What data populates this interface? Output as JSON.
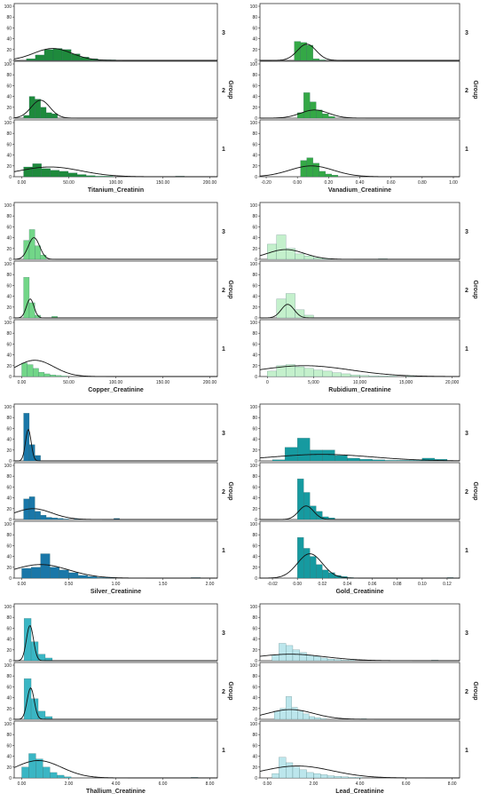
{
  "chart_data": [
    {
      "type": "histogram-panel",
      "xlabel": "Titanium_Creatinin",
      "group_label": "Group",
      "color": "#1e8a3c",
      "xlim": [
        -8,
        208
      ],
      "ylim": [
        0,
        100
      ],
      "xticks": [
        {
          "v": 0,
          "label": "0.00"
        },
        {
          "v": 50,
          "label": "50.00"
        },
        {
          "v": 100,
          "label": "100.00"
        },
        {
          "v": 150,
          "label": "150.00"
        },
        {
          "v": 200,
          "label": "200.00"
        }
      ],
      "yticks": [
        0,
        20,
        40,
        60,
        80,
        100
      ],
      "groups": [
        {
          "label": "3",
          "binStart": 5,
          "binWidth": 9.5,
          "counts": [
            3,
            10,
            20,
            22,
            20,
            12,
            6,
            3,
            1,
            1
          ],
          "curve": {
            "mean": 33,
            "sd": 20,
            "peak": 22
          }
        },
        {
          "label": "2",
          "binStart": 2,
          "binWidth": 6,
          "counts": [
            5,
            40,
            35,
            20,
            10,
            8
          ],
          "curve": {
            "mean": 20,
            "sd": 10,
            "peak": 33
          }
        },
        {
          "label": "1",
          "binStart": 2,
          "binWidth": 9.5,
          "counts": [
            18,
            24,
            15,
            12,
            10,
            7,
            4,
            2,
            1,
            1,
            0,
            0,
            0,
            0,
            0,
            0,
            0,
            1
          ],
          "curve": {
            "mean": 30,
            "sd": 33,
            "peak": 18
          }
        }
      ]
    },
    {
      "type": "histogram-panel",
      "xlabel": "Vanadium_Creatinine",
      "group_label": "Group",
      "color": "#34a846",
      "xlim": [
        -0.24,
        1.04
      ],
      "ylim": [
        0,
        100
      ],
      "xticks": [
        {
          "v": -0.2,
          "label": "-0.20"
        },
        {
          "v": 0,
          "label": "0.00"
        },
        {
          "v": 0.2,
          "label": "0.20"
        },
        {
          "v": 0.4,
          "label": "0.40"
        },
        {
          "v": 0.6,
          "label": "0.60"
        },
        {
          "v": 0.8,
          "label": "0.80"
        },
        {
          "v": 1.0,
          "label": "1.00"
        }
      ],
      "yticks": [
        0,
        20,
        40,
        60,
        80,
        100
      ],
      "groups": [
        {
          "label": "3",
          "binStart": -0.02,
          "binWidth": 0.04,
          "counts": [
            35,
            33,
            28,
            3,
            1
          ],
          "curve": {
            "mean": 0.06,
            "sd": 0.06,
            "peak": 30
          }
        },
        {
          "label": "2",
          "binStart": 0.0,
          "binWidth": 0.04,
          "counts": [
            10,
            47,
            30,
            15,
            8,
            3
          ],
          "curve": {
            "mean": 0.11,
            "sd": 0.09,
            "peak": 15
          }
        },
        {
          "label": "1",
          "binStart": 0.02,
          "binWidth": 0.04,
          "counts": [
            30,
            35,
            25,
            10,
            5,
            3
          ],
          "curve": {
            "mean": 0.09,
            "sd": 0.14,
            "peak": 20
          }
        }
      ]
    },
    {
      "type": "histogram-panel",
      "xlabel": "Copper_Creatinine",
      "group_label": "Group",
      "color": "#72d688",
      "xlim": [
        -8,
        208
      ],
      "ylim": [
        0,
        100
      ],
      "xticks": [
        {
          "v": 0,
          "label": "0.00"
        },
        {
          "v": 50,
          "label": "50.00"
        },
        {
          "v": 100,
          "label": "100.00"
        },
        {
          "v": 150,
          "label": "150.00"
        },
        {
          "v": 200,
          "label": "200.00"
        }
      ],
      "yticks": [
        0,
        20,
        40,
        60,
        80,
        100
      ],
      "groups": [
        {
          "label": "3",
          "binStart": 2,
          "binWidth": 6,
          "counts": [
            35,
            55,
            25,
            8
          ],
          "curve": {
            "mean": 13,
            "sd": 6,
            "peak": 40
          }
        },
        {
          "label": "2",
          "binStart": 2,
          "binWidth": 6,
          "counts": [
            75,
            28,
            5,
            0,
            0,
            3
          ],
          "curve": {
            "mean": 9,
            "sd": 4,
            "peak": 35
          }
        },
        {
          "label": "1",
          "binStart": 0,
          "binWidth": 6,
          "counts": [
            25,
            22,
            15,
            8,
            5,
            3,
            2,
            1
          ],
          "curve": {
            "mean": 14,
            "sd": 20,
            "peak": 30
          }
        }
      ]
    },
    {
      "type": "histogram-panel",
      "xlabel": "Rubidium_Creatinine",
      "group_label": "Group",
      "color": "#c4f0cc",
      "xlim": [
        -800,
        20800
      ],
      "ylim": [
        0,
        100
      ],
      "xticks": [
        {
          "v": 0,
          "label": "0"
        },
        {
          "v": 5000,
          "label": "5,000"
        },
        {
          "v": 10000,
          "label": "10,000"
        },
        {
          "v": 15000,
          "label": "15,000"
        },
        {
          "v": 20000,
          "label": "20,000"
        }
      ],
      "yticks": [
        0,
        20,
        40,
        60,
        80,
        100
      ],
      "groups": [
        {
          "label": "3",
          "binStart": 0,
          "binWidth": 1000,
          "counts": [
            28,
            45,
            20,
            10,
            6,
            3,
            1,
            0,
            0,
            0,
            0,
            0,
            1
          ],
          "curve": {
            "mean": 2000,
            "sd": 2000,
            "peak": 18
          }
        },
        {
          "label": "2",
          "binStart": 1000,
          "binWidth": 1000,
          "counts": [
            35,
            45,
            15,
            5
          ],
          "curve": {
            "mean": 2200,
            "sd": 700,
            "peak": 25
          }
        },
        {
          "label": "1",
          "binStart": 0,
          "binWidth": 1000,
          "counts": [
            10,
            20,
            22,
            18,
            15,
            12,
            10,
            7,
            5,
            3,
            2,
            1,
            1,
            1,
            0,
            1
          ],
          "curve": {
            "mean": 4000,
            "sd": 5000,
            "peak": 20
          }
        }
      ]
    },
    {
      "type": "histogram-panel",
      "xlabel": "Silver_Creatinine",
      "group_label": "Group",
      "color": "#1a77a8",
      "xlim": [
        -0.08,
        2.08
      ],
      "ylim": [
        0,
        100
      ],
      "xticks": [
        {
          "v": 0,
          "label": "0.00"
        },
        {
          "v": 0.5,
          "label": "0.50"
        },
        {
          "v": 1.0,
          "label": "1.00"
        },
        {
          "v": 1.5,
          "label": "1.50"
        },
        {
          "v": 2.0,
          "label": "2.00"
        }
      ],
      "yticks": [
        0,
        20,
        40,
        60,
        80,
        100
      ],
      "groups": [
        {
          "label": "3",
          "binStart": 0.02,
          "binWidth": 0.06,
          "counts": [
            88,
            30,
            10
          ],
          "curve": {
            "mean": 0.07,
            "sd": 0.03,
            "peak": 58
          }
        },
        {
          "label": "2",
          "binStart": 0.02,
          "binWidth": 0.06,
          "counts": [
            38,
            42,
            15,
            8,
            4,
            3,
            2,
            1,
            0,
            1,
            0,
            0,
            0,
            0,
            0,
            0,
            2
          ],
          "curve": {
            "mean": 0.12,
            "sd": 0.2,
            "peak": 20
          }
        },
        {
          "label": "1",
          "binStart": 0,
          "binWidth": 0.1,
          "counts": [
            18,
            20,
            45,
            20,
            15,
            10,
            5,
            3,
            1,
            1,
            0,
            0,
            0,
            0,
            0,
            0,
            0,
            0,
            1
          ],
          "curve": {
            "mean": 0.2,
            "sd": 0.3,
            "peak": 25
          }
        }
      ]
    },
    {
      "type": "histogram-panel",
      "xlabel": "Gold_Creatinine",
      "group_label": "Group",
      "color": "#169aa0",
      "xlim": [
        -0.03,
        0.13
      ],
      "ylim": [
        0,
        100
      ],
      "xticks": [
        {
          "v": -0.02,
          "label": "-0.02"
        },
        {
          "v": 0,
          "label": "0.00"
        },
        {
          "v": 0.02,
          "label": "0.02"
        },
        {
          "v": 0.04,
          "label": "0.04"
        },
        {
          "v": 0.06,
          "label": "0.06"
        },
        {
          "v": 0.08,
          "label": "0.08"
        },
        {
          "v": 0.1,
          "label": "0.10"
        },
        {
          "v": 0.12,
          "label": "0.12"
        }
      ],
      "yticks": [
        0,
        20,
        40,
        60,
        80,
        100
      ],
      "groups": [
        {
          "label": "3",
          "binStart": -0.02,
          "binWidth": 0.01,
          "counts": [
            2,
            25,
            42,
            20,
            20,
            10,
            5,
            3,
            2,
            1,
            1,
            1,
            5,
            3
          ],
          "curve": {
            "mean": 0.02,
            "sd": 0.04,
            "peak": 12
          }
        },
        {
          "label": "2",
          "binStart": 0,
          "binWidth": 0.005,
          "counts": [
            75,
            50,
            25,
            15,
            5,
            3
          ],
          "curve": {
            "mean": 0.007,
            "sd": 0.006,
            "peak": 25
          }
        },
        {
          "label": "1",
          "binStart": 0,
          "binWidth": 0.005,
          "counts": [
            75,
            55,
            40,
            25,
            15,
            10,
            5,
            3,
            1,
            0,
            0,
            0,
            0,
            0,
            0,
            0,
            0,
            0,
            0,
            0,
            0,
            0,
            0,
            0,
            1
          ],
          "curve": {
            "mean": 0.01,
            "sd": 0.01,
            "peak": 45
          }
        }
      ]
    },
    {
      "type": "histogram-panel",
      "xlabel": "Thallium_Creatinine",
      "group_label": "Group",
      "color": "#3ab6c4",
      "xlim": [
        -0.32,
        8.32
      ],
      "ylim": [
        0,
        100
      ],
      "xticks": [
        {
          "v": 0,
          "label": "0.00"
        },
        {
          "v": 2,
          "label": "2.00"
        },
        {
          "v": 4,
          "label": "4.00"
        },
        {
          "v": 6,
          "label": "6.00"
        },
        {
          "v": 8,
          "label": "8.00"
        }
      ],
      "yticks": [
        0,
        20,
        40,
        60,
        80,
        100
      ],
      "groups": [
        {
          "label": "3",
          "binStart": 0.1,
          "binWidth": 0.3,
          "counts": [
            78,
            35,
            12,
            5
          ],
          "curve": {
            "mean": 0.35,
            "sd": 0.15,
            "peak": 65
          }
        },
        {
          "label": "2",
          "binStart": 0.1,
          "binWidth": 0.3,
          "counts": [
            75,
            38,
            15,
            5
          ],
          "curve": {
            "mean": 0.38,
            "sd": 0.15,
            "peak": 58
          }
        },
        {
          "label": "1",
          "binStart": 0,
          "binWidth": 0.3,
          "counts": [
            20,
            45,
            35,
            20,
            10,
            5,
            2,
            0,
            0,
            0,
            0,
            0,
            0,
            0,
            0,
            0,
            0,
            0,
            0,
            0,
            0,
            0,
            0,
            0,
            1
          ],
          "curve": {
            "mean": 0.7,
            "sd": 1.0,
            "peak": 32
          }
        }
      ]
    },
    {
      "type": "histogram-panel",
      "xlabel": "Lead_Creatinine",
      "group_label": "Group",
      "color": "#bce6ec",
      "xlim": [
        -0.32,
        8.32
      ],
      "ylim": [
        0,
        100
      ],
      "xticks": [
        {
          "v": 0,
          "label": "0.00"
        },
        {
          "v": 2,
          "label": "2.00"
        },
        {
          "v": 4,
          "label": "4.00"
        },
        {
          "v": 6,
          "label": "6.00"
        },
        {
          "v": 8,
          "label": "8.00"
        }
      ],
      "yticks": [
        0,
        20,
        40,
        60,
        80,
        100
      ],
      "groups": [
        {
          "label": "3",
          "binStart": 0.2,
          "binWidth": 0.3,
          "counts": [
            10,
            32,
            28,
            20,
            15,
            10,
            8,
            5,
            3,
            2,
            1,
            1,
            0,
            0,
            0,
            0,
            0,
            0,
            0,
            0,
            0,
            0,
            0,
            1
          ],
          "curve": {
            "mean": 1.0,
            "sd": 1.5,
            "peak": 12
          }
        },
        {
          "label": "2",
          "binStart": 0.3,
          "binWidth": 0.25,
          "counts": [
            15,
            20,
            42,
            22,
            15,
            10,
            5,
            3,
            1,
            0,
            0,
            0,
            0,
            0,
            0,
            1
          ],
          "curve": {
            "mean": 1.0,
            "sd": 1.0,
            "peak": 18
          }
        },
        {
          "label": "1",
          "binStart": 0.2,
          "binWidth": 0.3,
          "counts": [
            8,
            38,
            28,
            20,
            15,
            10,
            8,
            6,
            4,
            3,
            2,
            1,
            1
          ],
          "curve": {
            "mean": 1.3,
            "sd": 1.5,
            "peak": 22
          }
        }
      ]
    }
  ]
}
